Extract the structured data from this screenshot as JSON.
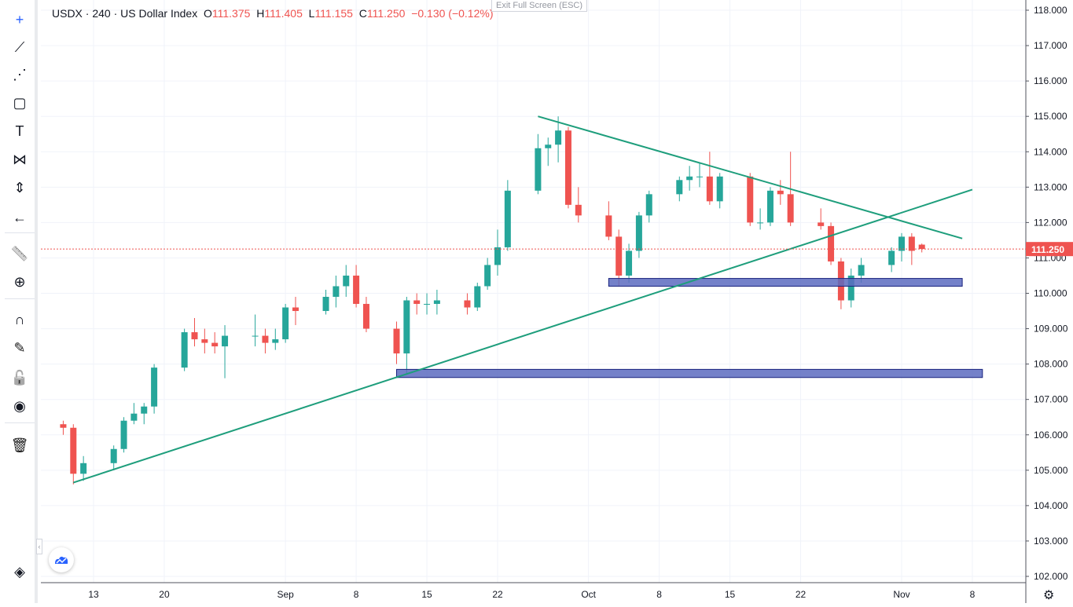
{
  "header": {
    "symbol": "USDX",
    "interval": "240",
    "name": "US Dollar Index",
    "sep": "·",
    "o_label": "O",
    "o": "111.375",
    "h_label": "H",
    "h": "111.405",
    "l_label": "L",
    "l": "111.155",
    "c_label": "C",
    "c": "111.250",
    "change": "−0.130 (−0.12%)"
  },
  "exit_fullscreen": "Exit Full Screen (ESC)",
  "toolbar": {
    "items": [
      "crosshair-icon",
      "trend-line-icon",
      "fib-icon",
      "rectangle-icon",
      "text-icon",
      "pattern-icon",
      "prediction-icon",
      "back-arrow-icon",
      "ruler-icon",
      "zoom-in-icon",
      "magnet-icon",
      "lock-drawings-icon",
      "unlock-icon",
      "eye-icon",
      "trash-icon",
      "layers-icon"
    ]
  },
  "colors": {
    "up": "#26a69a",
    "down": "#ef5350",
    "trendline": "#1e9e7c",
    "zone_fill": "#5c6bc0",
    "zone_border": "#1a237e",
    "last_price": "#ef5350"
  },
  "chart_data": {
    "type": "candlestick",
    "title": "USDX · 240 · US Dollar Index",
    "ylim": [
      102,
      118
    ],
    "y_ticks": [
      "102.000",
      "103.000",
      "104.000",
      "105.000",
      "106.000",
      "107.000",
      "108.000",
      "109.000",
      "110.000",
      "111.000",
      "112.000",
      "113.000",
      "114.000",
      "115.000",
      "116.000",
      "117.000",
      "118.000"
    ],
    "x_ticks": [
      {
        "label": "13",
        "date": "2022-08-13"
      },
      {
        "label": "20",
        "date": "2022-08-20"
      },
      {
        "label": "Sep",
        "date": "2022-09-01"
      },
      {
        "label": "8",
        "date": "2022-09-08"
      },
      {
        "label": "15",
        "date": "2022-09-15"
      },
      {
        "label": "22",
        "date": "2022-09-22"
      },
      {
        "label": "Oct",
        "date": "2022-10-01"
      },
      {
        "label": "8",
        "date": "2022-10-08"
      },
      {
        "label": "15",
        "date": "2022-10-15"
      },
      {
        "label": "22",
        "date": "2022-10-22"
      },
      {
        "label": "Nov",
        "date": "2022-11-01"
      },
      {
        "label": "8",
        "date": "2022-11-08"
      }
    ],
    "last_price": "111.250",
    "grid": true,
    "candles": [
      [
        "2022-08-10",
        106.3,
        106.4,
        106.0,
        106.2
      ],
      [
        "2022-08-11",
        106.2,
        106.3,
        104.6,
        104.9
      ],
      [
        "2022-08-12",
        104.9,
        105.4,
        104.7,
        105.2
      ],
      [
        "2022-08-15",
        105.2,
        105.7,
        105.0,
        105.6
      ],
      [
        "2022-08-16",
        105.6,
        106.5,
        105.5,
        106.4
      ],
      [
        "2022-08-17",
        106.4,
        106.9,
        106.3,
        106.6
      ],
      [
        "2022-08-18",
        106.6,
        106.9,
        106.3,
        106.8
      ],
      [
        "2022-08-19",
        106.8,
        108.0,
        106.6,
        107.9
      ],
      [
        "2022-08-22",
        107.9,
        109.0,
        107.8,
        108.9
      ],
      [
        "2022-08-23",
        108.9,
        109.3,
        108.5,
        108.7
      ],
      [
        "2022-08-24",
        108.7,
        109.0,
        108.3,
        108.6
      ],
      [
        "2022-08-25",
        108.6,
        108.9,
        108.3,
        108.5
      ],
      [
        "2022-08-26",
        108.5,
        109.1,
        107.6,
        108.8
      ],
      [
        "2022-08-29",
        108.8,
        109.4,
        108.5,
        108.8
      ],
      [
        "2022-08-30",
        108.8,
        109.0,
        108.3,
        108.6
      ],
      [
        "2022-08-31",
        108.6,
        109.0,
        108.4,
        108.7
      ],
      [
        "2022-09-01",
        108.7,
        109.7,
        108.6,
        109.6
      ],
      [
        "2022-09-02",
        109.6,
        109.9,
        109.1,
        109.5
      ],
      [
        "2022-09-05",
        109.5,
        110.1,
        109.4,
        109.9
      ],
      [
        "2022-09-06",
        109.9,
        110.5,
        109.6,
        110.2
      ],
      [
        "2022-09-07",
        110.2,
        110.8,
        109.9,
        110.5
      ],
      [
        "2022-09-08",
        110.5,
        110.8,
        109.6,
        109.7
      ],
      [
        "2022-09-09",
        109.7,
        109.9,
        108.9,
        109.0
      ],
      [
        "2022-09-12",
        109.0,
        109.2,
        108.0,
        108.3
      ],
      [
        "2022-09-13",
        108.3,
        109.9,
        107.7,
        109.8
      ],
      [
        "2022-09-14",
        109.8,
        110.0,
        109.4,
        109.7
      ],
      [
        "2022-09-15",
        109.7,
        110.0,
        109.4,
        109.7
      ],
      [
        "2022-09-16",
        109.7,
        110.1,
        109.4,
        109.8
      ],
      [
        "2022-09-19",
        109.8,
        110.0,
        109.4,
        109.6
      ],
      [
        "2022-09-20",
        109.6,
        110.3,
        109.5,
        110.2
      ],
      [
        "2022-09-21",
        110.2,
        111.0,
        110.1,
        110.8
      ],
      [
        "2022-09-22",
        110.8,
        111.8,
        110.5,
        111.3
      ],
      [
        "2022-09-23",
        111.3,
        113.2,
        111.2,
        112.9
      ],
      [
        "2022-09-26",
        112.9,
        114.5,
        112.8,
        114.1
      ],
      [
        "2022-09-27",
        114.1,
        114.4,
        113.6,
        114.2
      ],
      [
        "2022-09-28",
        114.2,
        115.0,
        113.7,
        114.6
      ],
      [
        "2022-09-29",
        114.6,
        114.7,
        112.4,
        112.5
      ],
      [
        "2022-09-30",
        112.5,
        113.0,
        112.0,
        112.2
      ],
      [
        "2022-10-03",
        112.2,
        112.6,
        111.5,
        111.6
      ],
      [
        "2022-10-04",
        111.6,
        111.8,
        110.2,
        110.5
      ],
      [
        "2022-10-05",
        110.5,
        111.4,
        110.3,
        111.2
      ],
      [
        "2022-10-06",
        111.2,
        112.3,
        111.0,
        112.2
      ],
      [
        "2022-10-07",
        112.2,
        112.9,
        112.0,
        112.8
      ],
      [
        "2022-10-10",
        112.8,
        113.3,
        112.6,
        113.2
      ],
      [
        "2022-10-11",
        113.2,
        113.6,
        112.9,
        113.3
      ],
      [
        "2022-10-12",
        113.3,
        113.7,
        113.0,
        113.3
      ],
      [
        "2022-10-13",
        113.3,
        114.0,
        112.5,
        112.6
      ],
      [
        "2022-10-14",
        112.6,
        113.4,
        112.4,
        113.3
      ],
      [
        "2022-10-17",
        113.3,
        113.4,
        111.9,
        112.0
      ],
      [
        "2022-10-18",
        112.0,
        112.4,
        111.8,
        112.0
      ],
      [
        "2022-10-19",
        112.0,
        113.0,
        111.9,
        112.9
      ],
      [
        "2022-10-20",
        112.9,
        113.2,
        112.5,
        112.8
      ],
      [
        "2022-10-21",
        112.8,
        114.0,
        111.9,
        112.0
      ],
      [
        "2022-10-24",
        112.0,
        112.4,
        111.8,
        111.9
      ],
      [
        "2022-10-25",
        111.9,
        112.0,
        110.8,
        110.9
      ],
      [
        "2022-10-26",
        110.9,
        111.0,
        109.55,
        109.8
      ],
      [
        "2022-10-27",
        109.8,
        110.7,
        109.6,
        110.5
      ],
      [
        "2022-10-28",
        110.5,
        111.0,
        110.3,
        110.8
      ],
      [
        "2022-10-31",
        110.8,
        111.3,
        110.6,
        111.2
      ],
      [
        "2022-11-01",
        111.2,
        111.7,
        110.9,
        111.6
      ],
      [
        "2022-11-02",
        111.6,
        111.7,
        110.8,
        111.2
      ],
      [
        "2022-11-03",
        111.375,
        111.405,
        111.155,
        111.25
      ]
    ],
    "drawings": {
      "trendlines": [
        {
          "from": [
            "2022-08-11",
            104.65
          ],
          "to": [
            "2022-11-08",
            112.93
          ]
        },
        {
          "from": [
            "2022-09-26",
            115.0
          ],
          "to": [
            "2022-11-07",
            111.55
          ]
        }
      ],
      "zones": [
        {
          "from": "2022-10-03",
          "to": "2022-11-07",
          "top": 110.42,
          "bottom": 110.2
        },
        {
          "from": "2022-09-12",
          "to": "2022-11-09",
          "top": 107.85,
          "bottom": 107.62
        }
      ]
    }
  }
}
